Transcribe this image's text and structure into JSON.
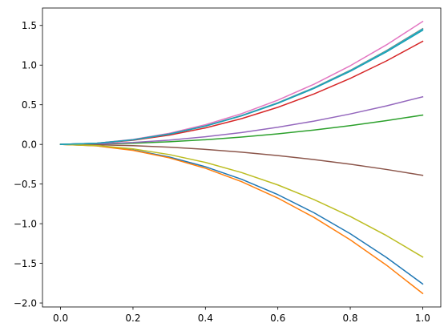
{
  "chart_data": {
    "type": "line",
    "title": "",
    "xlabel": "",
    "ylabel": "",
    "xlim": [
      -0.05,
      1.05
    ],
    "ylim": [
      -2.05,
      1.72
    ],
    "grid": false,
    "x_ticks": [
      {
        "value": 0.0,
        "label": "0.0"
      },
      {
        "value": 0.2,
        "label": "0.2"
      },
      {
        "value": 0.4,
        "label": "0.4"
      },
      {
        "value": 0.6,
        "label": "0.6"
      },
      {
        "value": 0.8,
        "label": "0.8"
      },
      {
        "value": 1.0,
        "label": "1.0"
      }
    ],
    "y_ticks": [
      {
        "value": 1.5,
        "label": "1.5"
      },
      {
        "value": 1.0,
        "label": "1.0"
      },
      {
        "value": 0.5,
        "label": "0.5"
      },
      {
        "value": 0.0,
        "label": "0.0"
      },
      {
        "value": -0.5,
        "label": "−0.5"
      },
      {
        "value": -1.0,
        "label": "−1.0"
      },
      {
        "value": -1.5,
        "label": "−1.5"
      },
      {
        "value": -2.0,
        "label": "−2.0"
      }
    ],
    "x": [
      0.0,
      0.1,
      0.2,
      0.3,
      0.4,
      0.5,
      0.6,
      0.7,
      0.8,
      0.9,
      1.0
    ],
    "series": [
      {
        "color": "#1f77b4",
        "values": [
          0.0,
          -0.0176,
          -0.0704,
          -0.1584,
          -0.2816,
          -0.44,
          -0.6336,
          -0.8624,
          -1.1264,
          -1.4256,
          -1.76
        ]
      },
      {
        "color": "#ff7f0e",
        "values": [
          0.0,
          -0.0188,
          -0.0752,
          -0.1692,
          -0.3008,
          -0.47,
          -0.6768,
          -0.9212,
          -1.2032,
          -1.5228,
          -1.88
        ]
      },
      {
        "color": "#2ca02c",
        "values": [
          0.0,
          0.0037,
          0.0148,
          0.0333,
          0.0592,
          0.0925,
          0.1332,
          0.1813,
          0.2368,
          0.2997,
          0.37
        ]
      },
      {
        "color": "#d62728",
        "values": [
          0.0,
          0.013,
          0.052,
          0.117,
          0.208,
          0.325,
          0.468,
          0.637,
          0.832,
          1.053,
          1.3
        ]
      },
      {
        "color": "#9467bd",
        "values": [
          0.0,
          0.006,
          0.024,
          0.054,
          0.096,
          0.15,
          0.216,
          0.294,
          0.384,
          0.486,
          0.6
        ]
      },
      {
        "color": "#8c564b",
        "values": [
          0.0,
          -0.0039,
          -0.0156,
          -0.0351,
          -0.0624,
          -0.0975,
          -0.1404,
          -0.1911,
          -0.2496,
          -0.3159,
          -0.39
        ]
      },
      {
        "color": "#e377c2",
        "values": [
          0.0,
          0.0155,
          0.062,
          0.1395,
          0.248,
          0.3875,
          0.558,
          0.7595,
          0.992,
          1.2555,
          1.55
        ]
      },
      {
        "color": "#7f7f7f",
        "values": [
          0.0,
          0.0146,
          0.0584,
          0.1314,
          0.2336,
          0.365,
          0.5256,
          0.7154,
          0.9344,
          1.1826,
          1.46
        ]
      },
      {
        "color": "#bcbd22",
        "values": [
          0.0,
          -0.0142,
          -0.0568,
          -0.1278,
          -0.2272,
          -0.355,
          -0.5112,
          -0.6958,
          -0.9088,
          -1.1502,
          -1.42
        ]
      },
      {
        "color": "#17becf",
        "values": [
          0.0,
          0.0145,
          0.058,
          0.1305,
          0.232,
          0.3625,
          0.522,
          0.7105,
          0.928,
          1.1745,
          1.45
        ]
      },
      {
        "color": "#1f9eb4",
        "values": [
          0.0,
          0.0144,
          0.0576,
          0.1296,
          0.2304,
          0.36,
          0.5184,
          0.7056,
          0.9216,
          1.1664,
          1.44
        ]
      }
    ]
  }
}
